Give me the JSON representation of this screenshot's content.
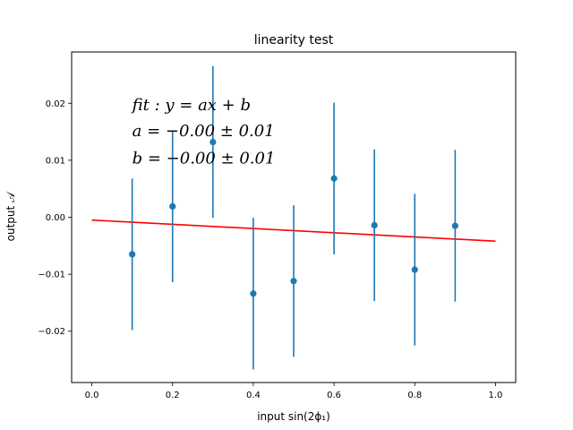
{
  "chart_data": {
    "type": "scatter",
    "title": "linearity test",
    "xlabel": "input sin(2ϕ₁)",
    "ylabel": "output 𝒜",
    "xlim": [
      -0.05,
      1.05
    ],
    "ylim": [
      -0.029,
      0.029
    ],
    "xticks": [
      0.0,
      0.2,
      0.4,
      0.6,
      0.8,
      1.0
    ],
    "xtick_labels": [
      "0.0",
      "0.2",
      "0.4",
      "0.6",
      "0.8",
      "1.0"
    ],
    "yticks": [
      -0.02,
      -0.01,
      0.0,
      0.01,
      0.02
    ],
    "ytick_labels": [
      "−0.02",
      "−0.01",
      "0.00",
      "0.01",
      "0.02"
    ],
    "grid": false,
    "series": [
      {
        "kind": "errorbar",
        "color": "#1f77b4",
        "x": [
          0.1,
          0.2,
          0.3,
          0.4,
          0.5,
          0.6,
          0.7,
          0.8,
          0.9
        ],
        "y": [
          -0.0065,
          0.0019,
          0.0132,
          -0.0134,
          -0.0112,
          0.0068,
          -0.0014,
          -0.0092,
          -0.0015
        ],
        "yerr": [
          0.0133,
          0.0133,
          0.0133,
          0.0133,
          0.0133,
          0.0133,
          0.0133,
          0.0133,
          0.0133
        ]
      },
      {
        "kind": "fit-line",
        "color": "#ff0000",
        "x": [
          0.0,
          1.0
        ],
        "y": [
          -0.0005,
          -0.0042
        ]
      }
    ],
    "annotations": [
      "fit : y = ax + b",
      "a = −0.00 ± 0.01",
      "b = −0.00 ± 0.01"
    ]
  }
}
